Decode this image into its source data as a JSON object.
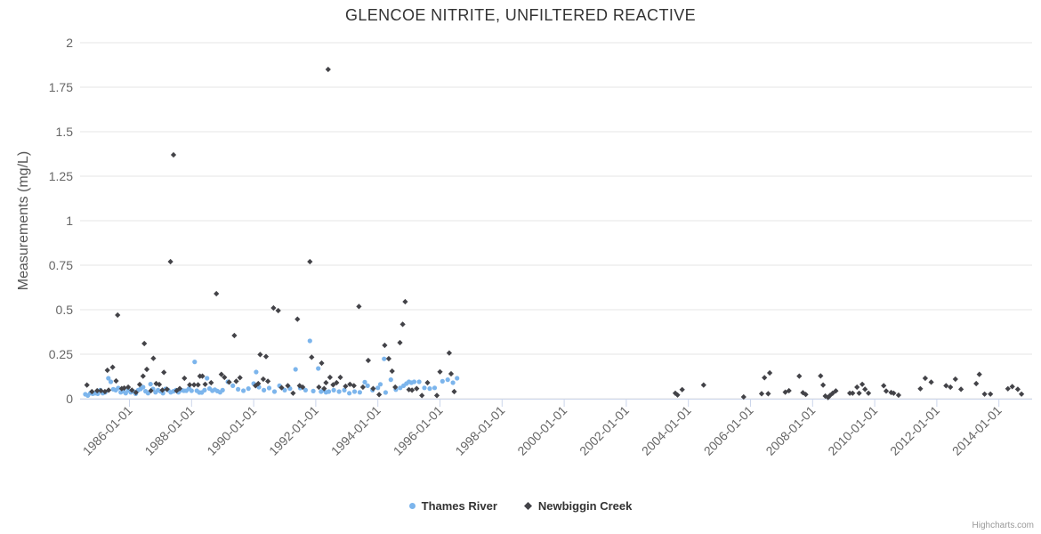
{
  "credits": {
    "label": "Highcharts.com"
  },
  "chart_data": {
    "type": "scatter",
    "title": "GLENCOE NITRITE, UNFILTERED REACTIVE",
    "xlabel": "",
    "ylabel": "Measurements (mg/L)",
    "ylim": [
      0,
      2
    ],
    "xlim_years": [
      1984.41,
      2015.07
    ],
    "yticks": [
      0,
      0.25,
      0.5,
      0.75,
      1,
      1.25,
      1.5,
      1.75,
      2
    ],
    "ytick_labels": [
      "0",
      "0.25",
      "0.5",
      "0.75",
      "1",
      "1.25",
      "1.5",
      "1.75",
      "2"
    ],
    "xtick_labels": [
      "1986-01-01",
      "1988-01-01",
      "1990-01-01",
      "1992-01-01",
      "1994-01-01",
      "1996-01-01",
      "1998-01-01",
      "2000-01-01",
      "2002-01-01",
      "2004-01-01",
      "2006-01-01",
      "2008-01-01",
      "2010-01-01",
      "2012-01-01",
      "2014-01-01"
    ],
    "grid": "horizontal-y-only",
    "legend_position": "bottom-center",
    "colors": {
      "grid": "#e6e6e6",
      "axis": "#ccd6eb",
      "tick_text": "#666666",
      "title_text": "#333333"
    },
    "series": [
      {
        "name": "Thames River",
        "marker": "circle",
        "color": "#7cb5ec",
        "points": [
          [
            1984.58,
            0.025
          ],
          [
            1984.66,
            0.018
          ],
          [
            1984.74,
            0.031
          ],
          [
            1984.82,
            0.028
          ],
          [
            1984.9,
            0.031
          ],
          [
            1984.98,
            0.028
          ],
          [
            1985.06,
            0.048
          ],
          [
            1985.14,
            0.031
          ],
          [
            1985.22,
            0.036
          ],
          [
            1985.32,
            0.115
          ],
          [
            1985.4,
            0.095
          ],
          [
            1985.48,
            0.053
          ],
          [
            1985.56,
            0.048
          ],
          [
            1985.64,
            0.06
          ],
          [
            1985.72,
            0.036
          ],
          [
            1985.8,
            0.042
          ],
          [
            1985.88,
            0.031
          ],
          [
            1985.96,
            0.048
          ],
          [
            1986.04,
            0.036
          ],
          [
            1986.12,
            0.042
          ],
          [
            1986.2,
            0.028
          ],
          [
            1986.28,
            0.048
          ],
          [
            1986.36,
            0.055
          ],
          [
            1986.44,
            0.065
          ],
          [
            1986.52,
            0.042
          ],
          [
            1986.6,
            0.031
          ],
          [
            1986.68,
            0.082
          ],
          [
            1986.76,
            0.055
          ],
          [
            1986.84,
            0.036
          ],
          [
            1986.92,
            0.048
          ],
          [
            1987.0,
            0.042
          ],
          [
            1987.08,
            0.031
          ],
          [
            1987.16,
            0.055
          ],
          [
            1987.25,
            0.048
          ],
          [
            1987.33,
            0.036
          ],
          [
            1987.42,
            0.042
          ],
          [
            1987.5,
            0.048
          ],
          [
            1987.58,
            0.036
          ],
          [
            1987.67,
            0.048
          ],
          [
            1987.75,
            0.045
          ],
          [
            1987.83,
            0.045
          ],
          [
            1987.92,
            0.057
          ],
          [
            1988.0,
            0.045
          ],
          [
            1988.1,
            0.207
          ],
          [
            1988.17,
            0.045
          ],
          [
            1988.25,
            0.035
          ],
          [
            1988.33,
            0.035
          ],
          [
            1988.42,
            0.048
          ],
          [
            1988.5,
            0.115
          ],
          [
            1988.58,
            0.057
          ],
          [
            1988.67,
            0.045
          ],
          [
            1988.75,
            0.051
          ],
          [
            1988.83,
            0.043
          ],
          [
            1988.92,
            0.036
          ],
          [
            1989.0,
            0.048
          ],
          [
            1989.17,
            0.095
          ],
          [
            1989.33,
            0.073
          ],
          [
            1989.5,
            0.053
          ],
          [
            1989.67,
            0.045
          ],
          [
            1989.83,
            0.057
          ],
          [
            1990.0,
            0.085
          ],
          [
            1990.08,
            0.15
          ],
          [
            1990.17,
            0.065
          ],
          [
            1990.33,
            0.048
          ],
          [
            1990.5,
            0.06
          ],
          [
            1990.67,
            0.04
          ],
          [
            1990.83,
            0.073
          ],
          [
            1991.0,
            0.048
          ],
          [
            1991.17,
            0.057
          ],
          [
            1991.35,
            0.165
          ],
          [
            1991.5,
            0.06
          ],
          [
            1991.67,
            0.048
          ],
          [
            1991.81,
            0.325
          ],
          [
            1991.92,
            0.043
          ],
          [
            1992.08,
            0.17
          ],
          [
            1992.17,
            0.04
          ],
          [
            1992.25,
            0.048
          ],
          [
            1992.33,
            0.036
          ],
          [
            1992.42,
            0.04
          ],
          [
            1992.58,
            0.048
          ],
          [
            1992.75,
            0.04
          ],
          [
            1992.92,
            0.048
          ],
          [
            1993.08,
            0.031
          ],
          [
            1993.25,
            0.04
          ],
          [
            1993.42,
            0.036
          ],
          [
            1993.58,
            0.093
          ],
          [
            1993.67,
            0.073
          ],
          [
            1993.83,
            0.048
          ],
          [
            1994.0,
            0.061
          ],
          [
            1994.08,
            0.081
          ],
          [
            1994.2,
            0.224
          ],
          [
            1994.25,
            0.035
          ],
          [
            1994.42,
            0.107
          ],
          [
            1994.58,
            0.051
          ],
          [
            1994.72,
            0.061
          ],
          [
            1994.83,
            0.073
          ],
          [
            1994.92,
            0.085
          ],
          [
            1995.0,
            0.095
          ],
          [
            1995.08,
            0.09
          ],
          [
            1995.17,
            0.095
          ],
          [
            1995.33,
            0.095
          ],
          [
            1995.5,
            0.061
          ],
          [
            1995.67,
            0.057
          ],
          [
            1995.83,
            0.061
          ],
          [
            1996.08,
            0.098
          ],
          [
            1996.25,
            0.107
          ],
          [
            1996.42,
            0.09
          ],
          [
            1996.55,
            0.115
          ]
        ]
      },
      {
        "name": "Newbiggin Creek",
        "marker": "diamond",
        "color": "#434348",
        "points": [
          [
            1984.63,
            0.077
          ],
          [
            1984.79,
            0.04
          ],
          [
            1984.96,
            0.045
          ],
          [
            1985.08,
            0.045
          ],
          [
            1985.21,
            0.04
          ],
          [
            1985.29,
            0.16
          ],
          [
            1985.33,
            0.048
          ],
          [
            1985.46,
            0.177
          ],
          [
            1985.57,
            0.1
          ],
          [
            1985.62,
            0.47
          ],
          [
            1985.75,
            0.057
          ],
          [
            1985.83,
            0.06
          ],
          [
            1985.96,
            0.065
          ],
          [
            1986.08,
            0.048
          ],
          [
            1986.21,
            0.035
          ],
          [
            1986.33,
            0.08
          ],
          [
            1986.44,
            0.127
          ],
          [
            1986.48,
            0.31
          ],
          [
            1986.56,
            0.165
          ],
          [
            1986.69,
            0.045
          ],
          [
            1986.77,
            0.227
          ],
          [
            1986.86,
            0.085
          ],
          [
            1986.96,
            0.08
          ],
          [
            1987.06,
            0.048
          ],
          [
            1987.11,
            0.148
          ],
          [
            1987.21,
            0.053
          ],
          [
            1987.32,
            0.77
          ],
          [
            1987.42,
            1.37
          ],
          [
            1987.52,
            0.045
          ],
          [
            1987.62,
            0.057
          ],
          [
            1987.77,
            0.115
          ],
          [
            1987.94,
            0.078
          ],
          [
            1988.08,
            0.078
          ],
          [
            1988.21,
            0.078
          ],
          [
            1988.27,
            0.127
          ],
          [
            1988.35,
            0.127
          ],
          [
            1988.44,
            0.081
          ],
          [
            1988.63,
            0.09
          ],
          [
            1988.8,
            0.59
          ],
          [
            1988.96,
            0.137
          ],
          [
            1989.06,
            0.12
          ],
          [
            1989.21,
            0.093
          ],
          [
            1989.38,
            0.355
          ],
          [
            1989.44,
            0.098
          ],
          [
            1989.56,
            0.118
          ],
          [
            1990.06,
            0.073
          ],
          [
            1990.15,
            0.085
          ],
          [
            1990.21,
            0.248
          ],
          [
            1990.31,
            0.11
          ],
          [
            1990.4,
            0.237
          ],
          [
            1990.46,
            0.098
          ],
          [
            1990.64,
            0.51
          ],
          [
            1990.79,
            0.495
          ],
          [
            1990.9,
            0.062
          ],
          [
            1991.1,
            0.073
          ],
          [
            1991.27,
            0.031
          ],
          [
            1991.41,
            0.447
          ],
          [
            1991.48,
            0.073
          ],
          [
            1991.58,
            0.065
          ],
          [
            1991.81,
            0.77
          ],
          [
            1991.87,
            0.233
          ],
          [
            1992.1,
            0.065
          ],
          [
            1992.19,
            0.2
          ],
          [
            1992.27,
            0.057
          ],
          [
            1992.33,
            0.09
          ],
          [
            1992.4,
            1.85
          ],
          [
            1992.46,
            0.12
          ],
          [
            1992.56,
            0.078
          ],
          [
            1992.67,
            0.09
          ],
          [
            1992.79,
            0.12
          ],
          [
            1992.96,
            0.07
          ],
          [
            1993.1,
            0.081
          ],
          [
            1993.23,
            0.073
          ],
          [
            1993.39,
            0.518
          ],
          [
            1993.52,
            0.065
          ],
          [
            1993.69,
            0.215
          ],
          [
            1993.85,
            0.057
          ],
          [
            1994.04,
            0.023
          ],
          [
            1994.22,
            0.3
          ],
          [
            1994.35,
            0.225
          ],
          [
            1994.46,
            0.155
          ],
          [
            1994.56,
            0.065
          ],
          [
            1994.8,
            0.418
          ],
          [
            1994.88,
            0.545
          ],
          [
            1994.71,
            0.315
          ],
          [
            1995.0,
            0.051
          ],
          [
            1995.1,
            0.048
          ],
          [
            1995.25,
            0.057
          ],
          [
            1995.42,
            0.018
          ],
          [
            1995.6,
            0.09
          ],
          [
            1995.9,
            0.018
          ],
          [
            1996.0,
            0.151
          ],
          [
            1996.3,
            0.257
          ],
          [
            1996.36,
            0.14
          ],
          [
            1996.46,
            0.04
          ],
          [
            2003.58,
            0.031
          ],
          [
            2003.65,
            0.021
          ],
          [
            2003.8,
            0.051
          ],
          [
            2004.49,
            0.077
          ],
          [
            2005.78,
            0.01
          ],
          [
            2006.36,
            0.028
          ],
          [
            2006.45,
            0.118
          ],
          [
            2006.57,
            0.028
          ],
          [
            2006.62,
            0.145
          ],
          [
            2007.12,
            0.037
          ],
          [
            2007.24,
            0.045
          ],
          [
            2007.57,
            0.127
          ],
          [
            2007.69,
            0.034
          ],
          [
            2007.78,
            0.024
          ],
          [
            2008.26,
            0.128
          ],
          [
            2008.34,
            0.077
          ],
          [
            2008.41,
            0.015
          ],
          [
            2008.5,
            0.007
          ],
          [
            2008.56,
            0.018
          ],
          [
            2008.65,
            0.031
          ],
          [
            2008.75,
            0.044
          ],
          [
            2009.2,
            0.031
          ],
          [
            2009.29,
            0.031
          ],
          [
            2009.43,
            0.065
          ],
          [
            2009.5,
            0.031
          ],
          [
            2009.6,
            0.081
          ],
          [
            2009.69,
            0.053
          ],
          [
            2009.8,
            0.031
          ],
          [
            2010.29,
            0.073
          ],
          [
            2010.37,
            0.043
          ],
          [
            2010.53,
            0.035
          ],
          [
            2010.61,
            0.031
          ],
          [
            2010.77,
            0.02
          ],
          [
            2011.47,
            0.056
          ],
          [
            2011.63,
            0.115
          ],
          [
            2011.82,
            0.093
          ],
          [
            2012.3,
            0.073
          ],
          [
            2012.44,
            0.065
          ],
          [
            2012.6,
            0.11
          ],
          [
            2012.78,
            0.053
          ],
          [
            2013.27,
            0.085
          ],
          [
            2013.37,
            0.137
          ],
          [
            2013.54,
            0.026
          ],
          [
            2013.73,
            0.026
          ],
          [
            2014.29,
            0.056
          ],
          [
            2014.43,
            0.068
          ],
          [
            2014.61,
            0.053
          ],
          [
            2014.73,
            0.026
          ]
        ]
      }
    ]
  }
}
